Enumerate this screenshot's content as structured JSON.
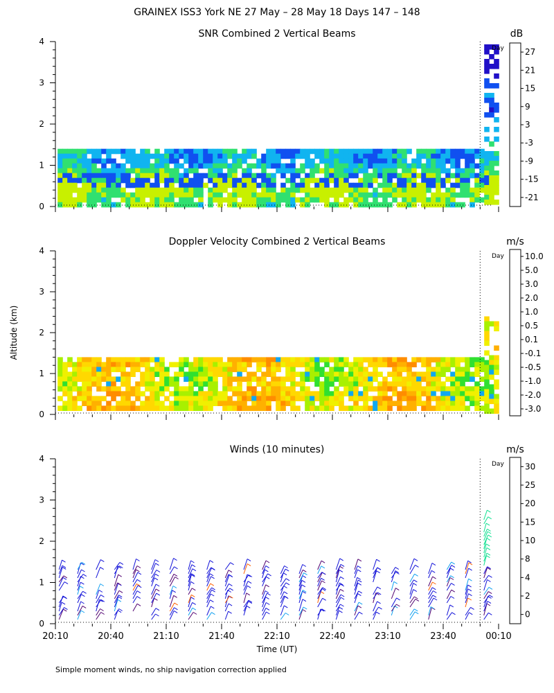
{
  "title": "GRAINEX ISS3 York NE  27 May – 28 May 18 Days 147 – 148",
  "y_axis_label": "Altitude (km)",
  "x_axis_label": "Time (UT)",
  "footnote": "Simple moment winds, no ship navigation correction applied",
  "day_marker_label": "Day",
  "colors": {
    "snr": [
      "#c8f000",
      "#30e070",
      "#10b4f0",
      "#1050f0",
      "#2010c8",
      "#400090",
      "#ff1a10",
      "#ff7a00",
      "#ffc000"
    ],
    "velocity": [
      "#ff1010",
      "#ff5a00",
      "#ff8c00",
      "#ffb000",
      "#ffd800",
      "#f0f000",
      "#a8f000",
      "#30e030",
      "#10a8f0",
      "#1050f0",
      "#2020c0",
      "#400090",
      "#300040"
    ],
    "winds": [
      "#000000",
      "#500070",
      "#1010d8",
      "#10a0f0",
      "#10e090",
      "#80f000",
      "#ffb000",
      "#ff6000",
      "#ff1010"
    ]
  },
  "chart_data": [
    {
      "type": "heatmap",
      "title": "SNR Combined 2 Vertical Beams",
      "units": "dB",
      "ylim": [
        0,
        4
      ],
      "yticks": [
        0,
        1,
        2,
        3,
        4
      ],
      "colorbar_ticks": [
        27,
        21,
        15,
        9,
        3,
        -3,
        -9,
        -15,
        -21
      ],
      "colorbar_range": [
        -24,
        33
      ],
      "data_top_km": 1.4,
      "late_top_km": 4.0
    },
    {
      "type": "heatmap",
      "title": "Doppler Velocity Combined 2 Vertical Beams",
      "units": "m/s",
      "ylim": [
        0,
        4
      ],
      "yticks": [
        0,
        1,
        2,
        3,
        4
      ],
      "colorbar_ticks": [
        "10.0",
        "5.0",
        "3.0",
        "2.0",
        "1.0",
        "0.5",
        "0.1",
        "-0.1",
        "-0.5",
        "-1.0",
        "-2.0",
        "-3.0"
      ],
      "data_top_km": 1.4,
      "late_top_km": 2.5
    },
    {
      "type": "scatter",
      "title": "Winds (10 minutes)",
      "units": "m/s",
      "ylim": [
        0,
        4
      ],
      "yticks": [
        0,
        1,
        2,
        3,
        4
      ],
      "colorbar_ticks": [
        30,
        25,
        20,
        15,
        10,
        8,
        4,
        2,
        0
      ],
      "data_top_km": 1.4,
      "late_top_km": 2.6,
      "profile_count": 24
    }
  ],
  "x_axis": {
    "start_minutes": 1210,
    "end_minutes": 1450,
    "day_boundary_minutes": 1440,
    "tick_labels": [
      "20:10",
      "20:40",
      "21:10",
      "21:40",
      "22:10",
      "22:40",
      "23:10",
      "23:40",
      "00:10"
    ]
  }
}
